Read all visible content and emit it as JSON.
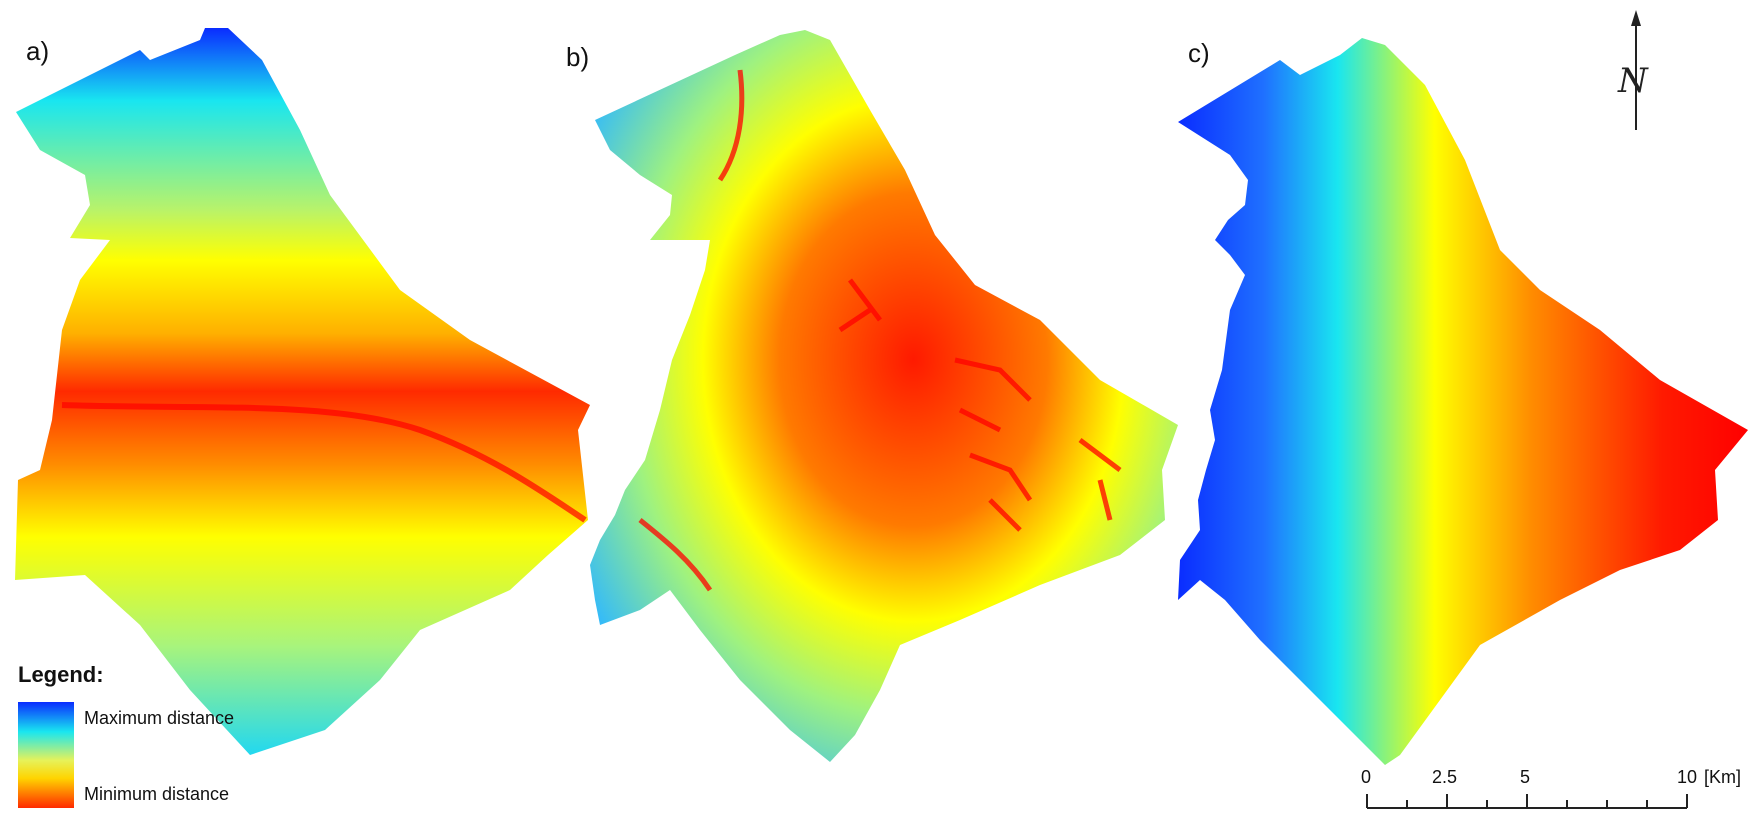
{
  "panels": [
    {
      "id": "a",
      "label": "a)"
    },
    {
      "id": "b",
      "label": "b)"
    },
    {
      "id": "c",
      "label": "c)"
    }
  ],
  "legend": {
    "title": "Legend:",
    "max_label": "Maximum distance",
    "min_label": "Minimum distance",
    "colors": [
      "#0a2cff",
      "#19e6f0",
      "#e6f25a",
      "#ffd400",
      "#ff2a00"
    ]
  },
  "scale_bar": {
    "ticks": [
      "0",
      "2.5",
      "5",
      "10"
    ],
    "unit": "[Km]"
  },
  "north_arrow": {
    "letter": "N"
  },
  "colors": {
    "max": "#0a2cff",
    "cyan": "#19e6f0",
    "yellow": "#ffff00",
    "orange": "#ff8c00",
    "min": "#ff0000"
  }
}
